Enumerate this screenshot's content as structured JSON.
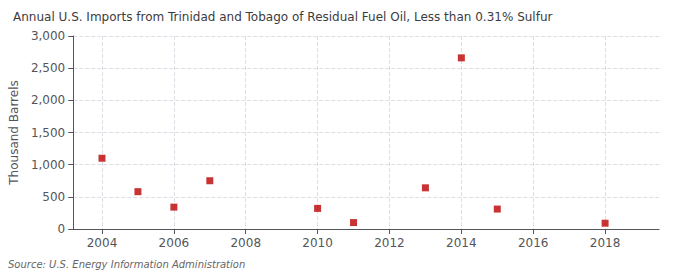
{
  "chart_data": {
    "type": "scatter",
    "title": "Annual U.S. Imports from Trinidad and Tobago of Residual Fuel Oil, Less than 0.31% Sulfur",
    "ylabel": "Thousand Barrels",
    "annotation": "Source: U.S. Energy Information Administration",
    "x": [
      2004,
      2005,
      2006,
      2007,
      2010,
      2011,
      2013,
      2014,
      2015,
      2018
    ],
    "values": [
      1100,
      580,
      340,
      750,
      320,
      100,
      640,
      2660,
      310,
      90
    ],
    "color": "#bb0000",
    "marker": "square",
    "xlim": [
      2003.2,
      2019.5
    ],
    "xticks": [
      2004,
      2006,
      2008,
      2010,
      2012,
      2014,
      2016,
      2018
    ],
    "ylim": [
      0,
      3000
    ],
    "yticks": [
      0,
      500,
      {
        "value": 1000,
        "label": "1,000"
      },
      {
        "value": 1500,
        "label": "1,500"
      },
      {
        "value": 2000,
        "label": "2,000"
      },
      {
        "value": 2500,
        "label": "2,500"
      },
      {
        "value": 3000,
        "label": "3,000"
      }
    ],
    "grid": true
  }
}
